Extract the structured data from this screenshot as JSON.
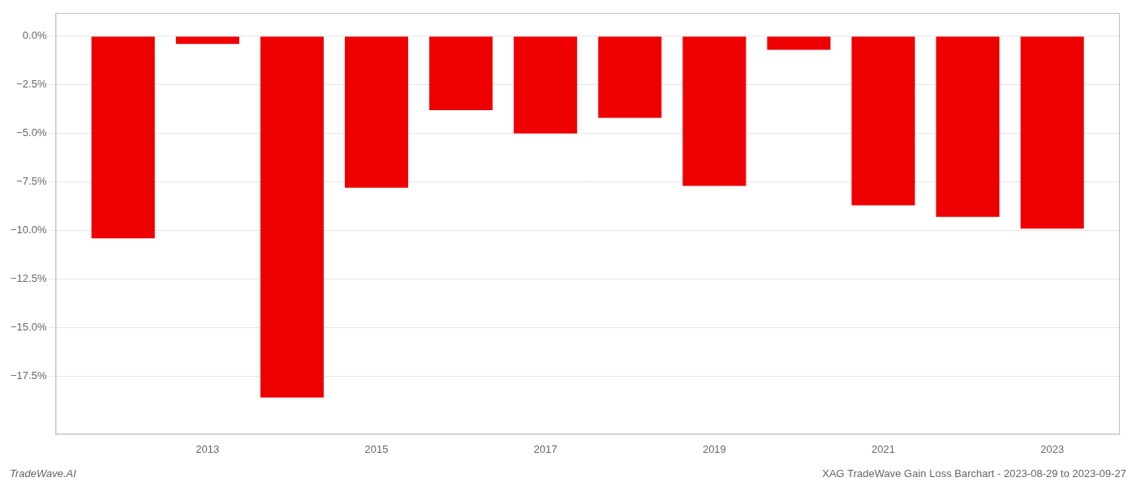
{
  "chart_data": {
    "type": "bar",
    "x": [
      2012,
      2013,
      2014,
      2015,
      2016,
      2017,
      2018,
      2019,
      2020,
      2021,
      2022,
      2023
    ],
    "values": [
      -10.4,
      -0.4,
      -18.6,
      -7.8,
      -3.8,
      -5.0,
      -4.2,
      -7.7,
      -0.7,
      -8.7,
      -9.3,
      -9.9
    ],
    "color": "#ee0000",
    "xlim": [
      2011.2,
      2023.8
    ],
    "xticks": [
      2013,
      2015,
      2017,
      2019,
      2021,
      2023
    ],
    "ylim": [
      -20.5,
      1.2
    ],
    "yticks": [
      {
        "value": 0.0,
        "label": "0.0%"
      },
      {
        "value": -2.5,
        "label": "−2.5%"
      },
      {
        "value": -5.0,
        "label": "−5.0%"
      },
      {
        "value": -7.5,
        "label": "−7.5%"
      },
      {
        "value": -10.0,
        "label": "−10.0%"
      },
      {
        "value": -12.5,
        "label": "−12.5%"
      },
      {
        "value": -15.0,
        "label": "−15.0%"
      },
      {
        "value": -17.5,
        "label": "−17.5%"
      }
    ],
    "grid": true,
    "annotations": [
      "TradeWave.AI",
      "XAG TradeWave Gain Loss Barchart - 2023-08-29 to 2023-09-27"
    ]
  }
}
